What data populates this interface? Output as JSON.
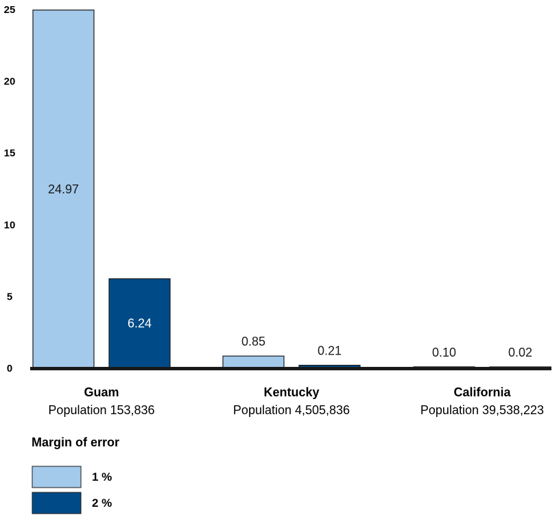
{
  "chart_data": {
    "type": "bar",
    "categories": [
      "Guam",
      "Kentucky",
      "California"
    ],
    "category_sublabels": [
      "Population 153,836",
      "Population 4,505,836",
      "Population 39,538,223"
    ],
    "series": [
      {
        "name": "1 %",
        "values": [
          24.97,
          0.85,
          0.1
        ],
        "labels": [
          "24.97",
          "0.85",
          "0.10"
        ],
        "color": "#a3c9eb"
      },
      {
        "name": "2 %",
        "values": [
          6.24,
          0.21,
          0.02
        ],
        "labels": [
          "6.24",
          "0.21",
          "0.02"
        ],
        "color": "#004b87"
      }
    ],
    "ylim": [
      0,
      25
    ],
    "yticks": [
      "0",
      "5",
      "10",
      "15",
      "20",
      "25"
    ],
    "legend_title": "Margin of error",
    "legend_position": "bottom-left",
    "grid": false
  },
  "colors": {
    "bar_outline": "#1a1a1a",
    "axis_line": "#1a1a1a",
    "label_inside_light": "#1a1a1a",
    "label_inside_dark": "#ffffff",
    "label_outside": "#1a1a1a"
  }
}
